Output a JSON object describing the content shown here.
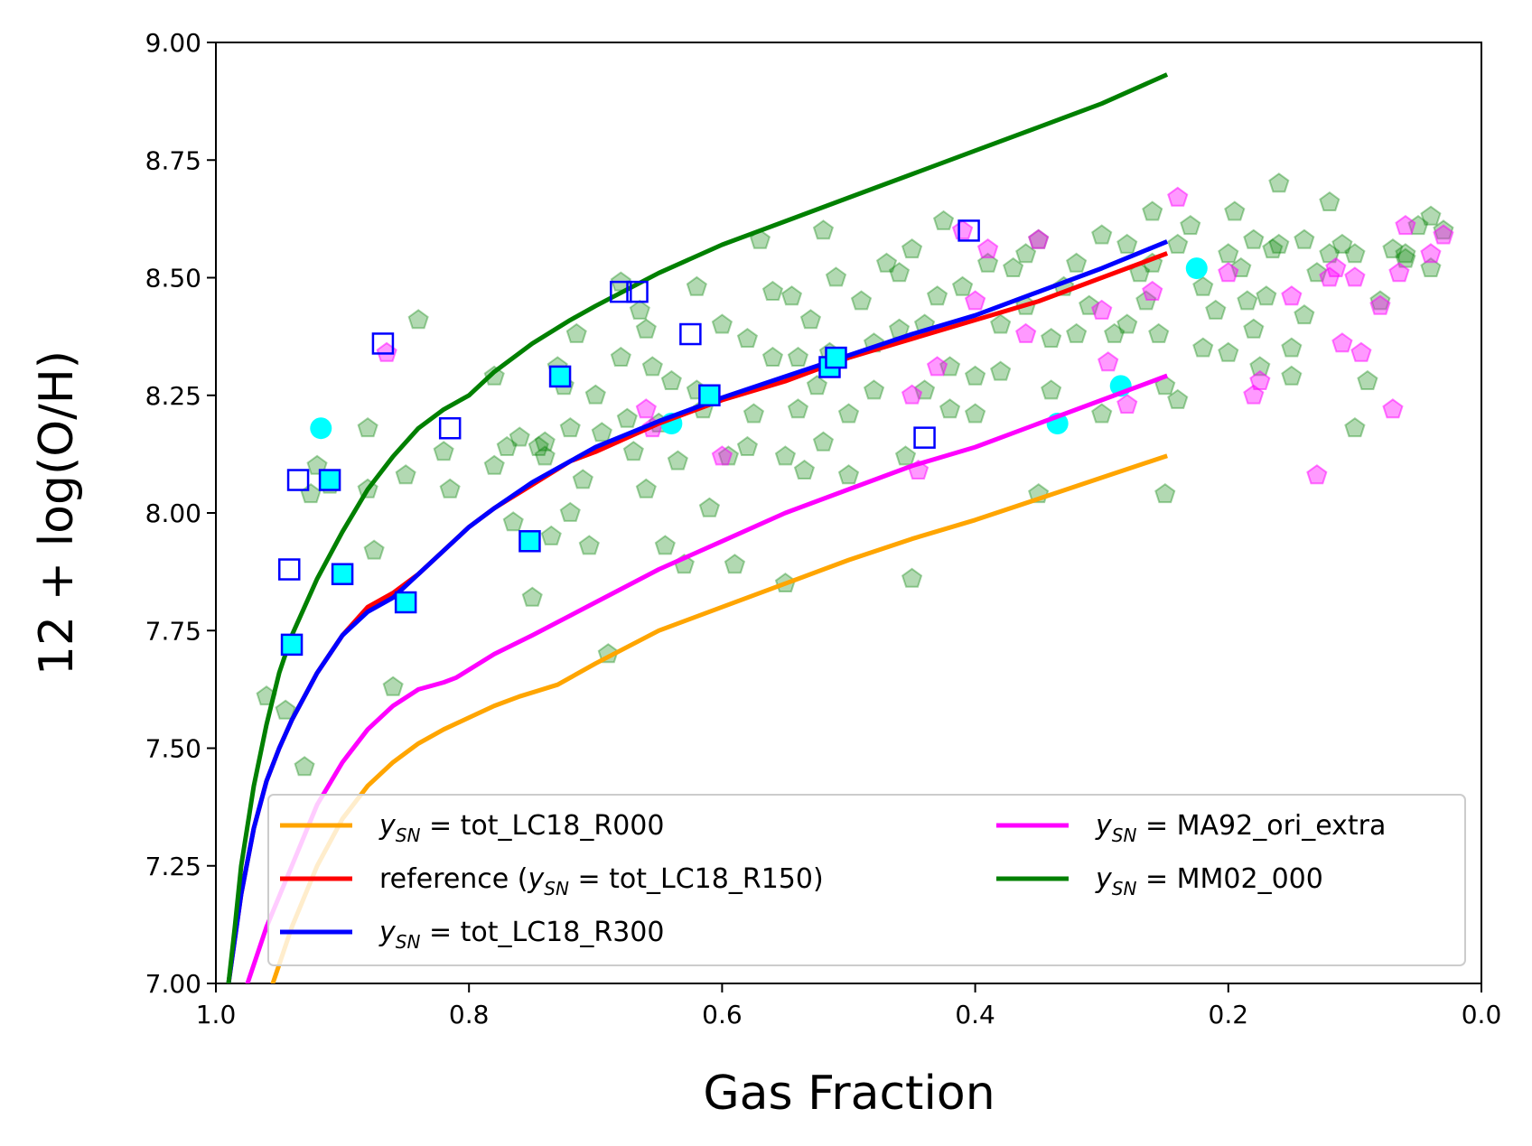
{
  "chart_data": {
    "type": "scatter",
    "title": "",
    "xlabel": "Gas Fraction",
    "ylabel": "12 + log(O/H)",
    "xlim": [
      1.0,
      0.0
    ],
    "ylim": [
      7.0,
      9.0
    ],
    "x_ticks": [
      1.0,
      0.8,
      0.6,
      0.4,
      0.2,
      0.0
    ],
    "x_tick_labels": [
      "1.0",
      "0.8",
      "0.6",
      "0.4",
      "0.2",
      "0.0"
    ],
    "y_ticks": [
      7.0,
      7.25,
      7.5,
      7.75,
      8.0,
      8.25,
      8.5,
      8.75,
      9.0
    ],
    "y_tick_labels": [
      "7.00",
      "7.25",
      "7.50",
      "7.75",
      "8.00",
      "8.25",
      "8.50",
      "8.75",
      "9.00"
    ],
    "grid": false,
    "legend_location": "bottom",
    "series": [
      {
        "name": "y_SN = tot_LC18_R000",
        "kind": "line",
        "color": "#ffa500",
        "label_prefix": "",
        "label_var": "y",
        "label_sub": "SN",
        "label_rest": " = tot_LC18_R000",
        "label_suffix": "",
        "x": [
          0.955,
          0.94,
          0.92,
          0.9,
          0.88,
          0.86,
          0.84,
          0.82,
          0.8,
          0.78,
          0.76,
          0.73,
          0.7,
          0.65,
          0.6,
          0.55,
          0.5,
          0.45,
          0.4,
          0.35,
          0.3,
          0.25
        ],
        "y": [
          7.0,
          7.12,
          7.25,
          7.35,
          7.42,
          7.47,
          7.51,
          7.54,
          7.565,
          7.59,
          7.61,
          7.635,
          7.68,
          7.75,
          7.8,
          7.85,
          7.9,
          7.945,
          7.985,
          8.03,
          8.075,
          8.12
        ]
      },
      {
        "name": "reference (y_SN = tot_LC18_R150)",
        "kind": "line",
        "color": "#ff0000",
        "label_prefix": "reference (",
        "label_var": "y",
        "label_sub": "SN",
        "label_rest": " = tot_LC18_R150",
        "label_suffix": ")",
        "x": [
          0.99,
          0.98,
          0.97,
          0.96,
          0.95,
          0.94,
          0.93,
          0.92,
          0.91,
          0.9,
          0.88,
          0.86,
          0.84,
          0.82,
          0.8,
          0.78,
          0.75,
          0.72,
          0.7,
          0.65,
          0.6,
          0.55,
          0.5,
          0.45,
          0.4,
          0.35,
          0.3,
          0.25
        ],
        "y": [
          7.0,
          7.19,
          7.33,
          7.43,
          7.5,
          7.56,
          7.61,
          7.66,
          7.7,
          7.74,
          7.8,
          7.83,
          7.87,
          7.92,
          7.97,
          8.01,
          8.06,
          8.11,
          8.13,
          8.19,
          8.24,
          8.28,
          8.33,
          8.37,
          8.41,
          8.45,
          8.5,
          8.55
        ]
      },
      {
        "name": "y_SN = tot_LC18_R300",
        "kind": "line",
        "color": "#0000ff",
        "label_prefix": "",
        "label_var": "y",
        "label_sub": "SN",
        "label_rest": " = tot_LC18_R300",
        "label_suffix": "",
        "x": [
          0.99,
          0.98,
          0.97,
          0.96,
          0.95,
          0.94,
          0.93,
          0.92,
          0.91,
          0.9,
          0.88,
          0.86,
          0.84,
          0.82,
          0.8,
          0.78,
          0.75,
          0.72,
          0.7,
          0.65,
          0.6,
          0.55,
          0.5,
          0.45,
          0.4,
          0.35,
          0.3,
          0.25
        ],
        "y": [
          7.0,
          7.19,
          7.33,
          7.43,
          7.5,
          7.56,
          7.61,
          7.66,
          7.7,
          7.74,
          7.79,
          7.82,
          7.87,
          7.92,
          7.97,
          8.01,
          8.065,
          8.11,
          8.14,
          8.195,
          8.245,
          8.29,
          8.335,
          8.38,
          8.42,
          8.47,
          8.52,
          8.575
        ]
      },
      {
        "name": "y_SN = MA92_ori_extra",
        "kind": "line",
        "color": "#ff00ff",
        "label_prefix": "",
        "label_var": "y",
        "label_sub": "SN",
        "label_rest": " = MA92_ori_extra",
        "label_suffix": "",
        "x": [
          0.975,
          0.96,
          0.94,
          0.92,
          0.9,
          0.88,
          0.86,
          0.84,
          0.82,
          0.81,
          0.78,
          0.75,
          0.7,
          0.65,
          0.6,
          0.55,
          0.5,
          0.45,
          0.4,
          0.35,
          0.3,
          0.25
        ],
        "y": [
          7.0,
          7.12,
          7.25,
          7.38,
          7.47,
          7.54,
          7.59,
          7.625,
          7.64,
          7.65,
          7.7,
          7.74,
          7.81,
          7.88,
          7.94,
          8.0,
          8.05,
          8.1,
          8.14,
          8.19,
          8.24,
          8.29
        ]
      },
      {
        "name": "y_SN = MM02_000",
        "kind": "line",
        "color": "#008000",
        "label_prefix": "",
        "label_var": "y",
        "label_sub": "SN",
        "label_rest": " = MM02_000",
        "label_suffix": "",
        "x": [
          0.99,
          0.985,
          0.98,
          0.97,
          0.96,
          0.95,
          0.94,
          0.92,
          0.9,
          0.88,
          0.86,
          0.84,
          0.82,
          0.8,
          0.78,
          0.75,
          0.72,
          0.7,
          0.65,
          0.6,
          0.55,
          0.5,
          0.45,
          0.4,
          0.35,
          0.3,
          0.25
        ],
        "y": [
          7.0,
          7.12,
          7.25,
          7.42,
          7.55,
          7.66,
          7.74,
          7.86,
          7.96,
          8.05,
          8.12,
          8.18,
          8.22,
          8.25,
          8.3,
          8.36,
          8.41,
          8.44,
          8.51,
          8.57,
          8.62,
          8.67,
          8.72,
          8.77,
          8.82,
          8.87,
          8.93
        ]
      },
      {
        "name": "green pentagon data",
        "kind": "pentagon",
        "color": "#008000",
        "x": [
          0.96,
          0.945,
          0.93,
          0.925,
          0.91,
          0.88,
          0.875,
          0.86,
          0.85,
          0.84,
          0.815,
          0.78,
          0.77,
          0.765,
          0.76,
          0.75,
          0.745,
          0.74,
          0.735,
          0.73,
          0.725,
          0.72,
          0.715,
          0.71,
          0.705,
          0.7,
          0.695,
          0.69,
          0.68,
          0.675,
          0.67,
          0.665,
          0.66,
          0.655,
          0.65,
          0.645,
          0.64,
          0.635,
          0.63,
          0.62,
          0.615,
          0.61,
          0.6,
          0.595,
          0.59,
          0.58,
          0.575,
          0.57,
          0.56,
          0.55,
          0.545,
          0.54,
          0.535,
          0.53,
          0.525,
          0.52,
          0.515,
          0.51,
          0.5,
          0.49,
          0.48,
          0.47,
          0.46,
          0.455,
          0.45,
          0.44,
          0.43,
          0.425,
          0.42,
          0.41,
          0.4,
          0.39,
          0.38,
          0.37,
          0.36,
          0.35,
          0.34,
          0.33,
          0.32,
          0.31,
          0.3,
          0.29,
          0.28,
          0.27,
          0.265,
          0.26,
          0.255,
          0.25,
          0.24,
          0.23,
          0.22,
          0.21,
          0.2,
          0.195,
          0.19,
          0.185,
          0.18,
          0.175,
          0.17,
          0.165,
          0.16,
          0.15,
          0.14,
          0.13,
          0.12,
          0.11,
          0.1,
          0.09,
          0.08,
          0.07,
          0.06,
          0.05,
          0.04,
          0.03,
          0.55,
          0.45,
          0.35,
          0.25,
          0.15,
          0.32,
          0.28,
          0.22,
          0.18,
          0.12,
          0.48,
          0.42,
          0.38,
          0.58,
          0.62,
          0.68,
          0.72,
          0.78,
          0.82,
          0.88,
          0.92,
          0.66,
          0.56,
          0.46,
          0.36,
          0.26,
          0.16,
          0.06,
          0.52,
          0.44,
          0.34,
          0.24,
          0.14,
          0.04,
          0.74,
          0.64,
          0.54,
          0.5,
          0.4,
          0.3,
          0.2,
          0.1
        ],
        "y": [
          7.61,
          7.58,
          7.46,
          8.04,
          8.06,
          8.18,
          7.92,
          7.63,
          8.08,
          8.41,
          8.05,
          8.29,
          8.14,
          7.98,
          8.16,
          7.82,
          8.14,
          8.12,
          7.95,
          8.31,
          8.27,
          8.0,
          8.38,
          8.07,
          7.93,
          8.25,
          8.17,
          7.7,
          8.49,
          8.2,
          8.13,
          8.43,
          8.05,
          8.31,
          8.19,
          7.93,
          8.28,
          8.11,
          7.89,
          8.48,
          8.22,
          8.01,
          8.4,
          8.12,
          7.89,
          8.37,
          8.21,
          8.58,
          8.33,
          8.12,
          8.46,
          8.22,
          8.09,
          8.41,
          8.27,
          8.15,
          8.34,
          8.5,
          8.21,
          8.45,
          8.26,
          8.53,
          8.39,
          8.12,
          8.56,
          8.26,
          8.46,
          8.62,
          8.31,
          8.48,
          8.21,
          8.53,
          8.4,
          8.52,
          8.44,
          8.58,
          8.37,
          8.48,
          8.53,
          8.44,
          8.59,
          8.38,
          8.57,
          8.51,
          8.45,
          8.64,
          8.38,
          8.27,
          8.57,
          8.61,
          8.48,
          8.43,
          8.55,
          8.64,
          8.52,
          8.45,
          8.58,
          8.31,
          8.46,
          8.56,
          8.7,
          8.35,
          8.42,
          8.51,
          8.66,
          8.57,
          8.55,
          8.28,
          8.45,
          8.56,
          8.54,
          8.61,
          8.63,
          8.6,
          7.85,
          7.86,
          8.04,
          8.04,
          8.29,
          8.38,
          8.4,
          8.35,
          8.39,
          8.55,
          8.36,
          8.22,
          8.3,
          8.14,
          8.26,
          8.33,
          8.18,
          8.1,
          8.13,
          8.05,
          8.1,
          8.39,
          8.47,
          8.51,
          8.55,
          8.53,
          8.57,
          8.55,
          8.6,
          8.4,
          8.26,
          8.24,
          8.58,
          8.52,
          8.15,
          8.19,
          8.33,
          8.08,
          8.29,
          8.21,
          8.34,
          8.18
        ]
      },
      {
        "name": "magenta pentagon data",
        "kind": "pentagon",
        "color": "#ff00ff",
        "x": [
          0.865,
          0.66,
          0.655,
          0.6,
          0.45,
          0.445,
          0.43,
          0.41,
          0.4,
          0.39,
          0.36,
          0.35,
          0.3,
          0.295,
          0.28,
          0.26,
          0.24,
          0.2,
          0.18,
          0.175,
          0.15,
          0.13,
          0.12,
          0.115,
          0.11,
          0.1,
          0.095,
          0.08,
          0.07,
          0.065,
          0.06,
          0.04,
          0.03
        ],
        "y": [
          8.34,
          8.22,
          8.18,
          8.12,
          8.25,
          8.09,
          8.31,
          8.6,
          8.45,
          8.56,
          8.38,
          8.58,
          8.43,
          8.32,
          8.23,
          8.47,
          8.67,
          8.51,
          8.25,
          8.28,
          8.46,
          8.08,
          8.5,
          8.52,
          8.36,
          8.5,
          8.34,
          8.44,
          8.22,
          8.51,
          8.61,
          8.55,
          8.59
        ]
      },
      {
        "name": "cyan circle data",
        "kind": "circle",
        "color": "#00ffff",
        "x": [
          0.917,
          0.64,
          0.335,
          0.285,
          0.225
        ],
        "y": [
          8.18,
          8.19,
          8.19,
          8.27,
          8.52
        ]
      },
      {
        "name": "filled cyan square data",
        "kind": "square-filled",
        "color": "#00ffff",
        "x": [
          0.94,
          0.91,
          0.9,
          0.85,
          0.752,
          0.728,
          0.61,
          0.515,
          0.51
        ],
        "y": [
          7.72,
          8.07,
          7.87,
          7.81,
          7.94,
          8.29,
          8.25,
          8.31,
          8.33
        ]
      },
      {
        "name": "open blue square data",
        "kind": "square-open",
        "color": "#0000ff",
        "x": [
          0.942,
          0.935,
          0.868,
          0.815,
          0.68,
          0.667,
          0.625,
          0.44,
          0.405
        ],
        "y": [
          7.88,
          8.07,
          8.36,
          8.18,
          8.47,
          8.47,
          8.38,
          8.16,
          8.6
        ]
      }
    ]
  }
}
